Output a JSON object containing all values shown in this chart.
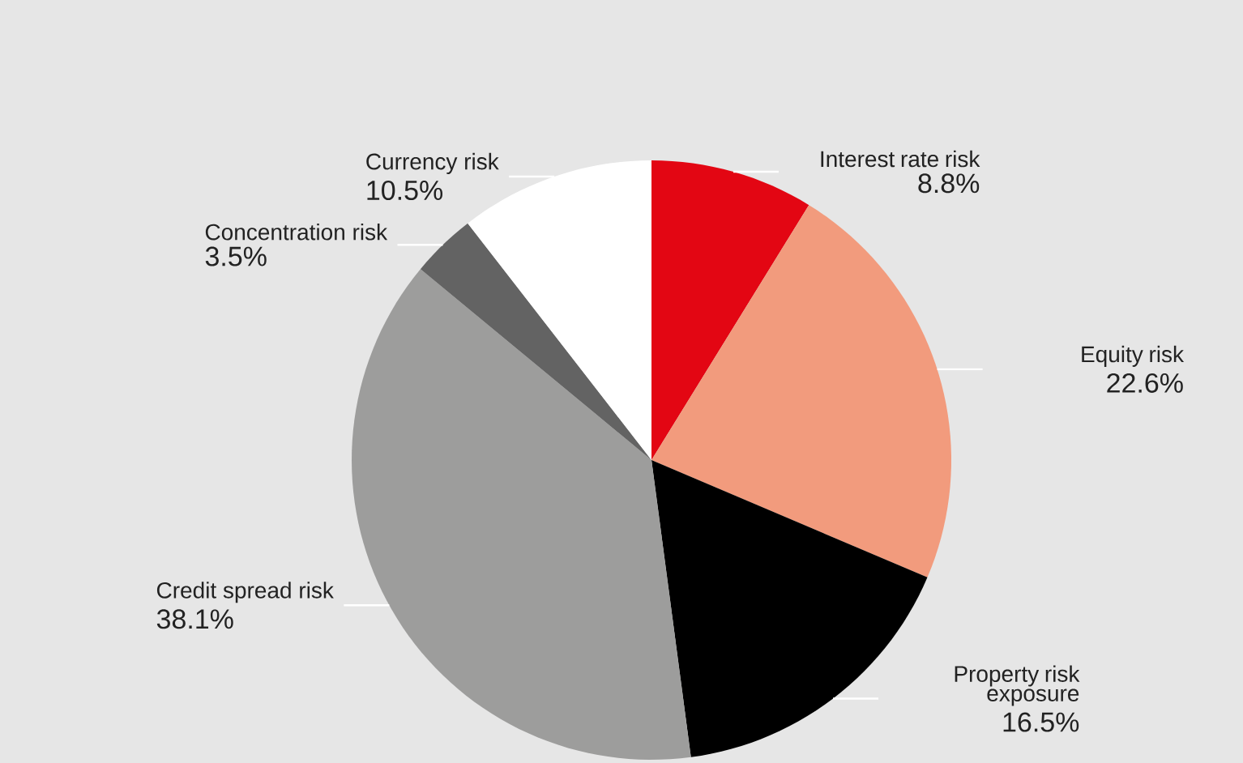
{
  "chart_data": {
    "type": "pie",
    "categories": [
      "Interest rate risk",
      "Equity risk",
      "Property risk exposure",
      "Credit spread risk",
      "Concentration risk",
      "Currency risk"
    ],
    "values": [
      8.8,
      22.6,
      16.5,
      38.1,
      3.5,
      10.5
    ],
    "value_labels": [
      "8.8%",
      "22.6%",
      "16.5%",
      "38.1%",
      "3.5%",
      "10.5%"
    ],
    "colors": [
      "#e30613",
      "#f29b7d",
      "#000000",
      "#9d9d9c",
      "#636363",
      "#ffffff"
    ],
    "legend": false
  }
}
